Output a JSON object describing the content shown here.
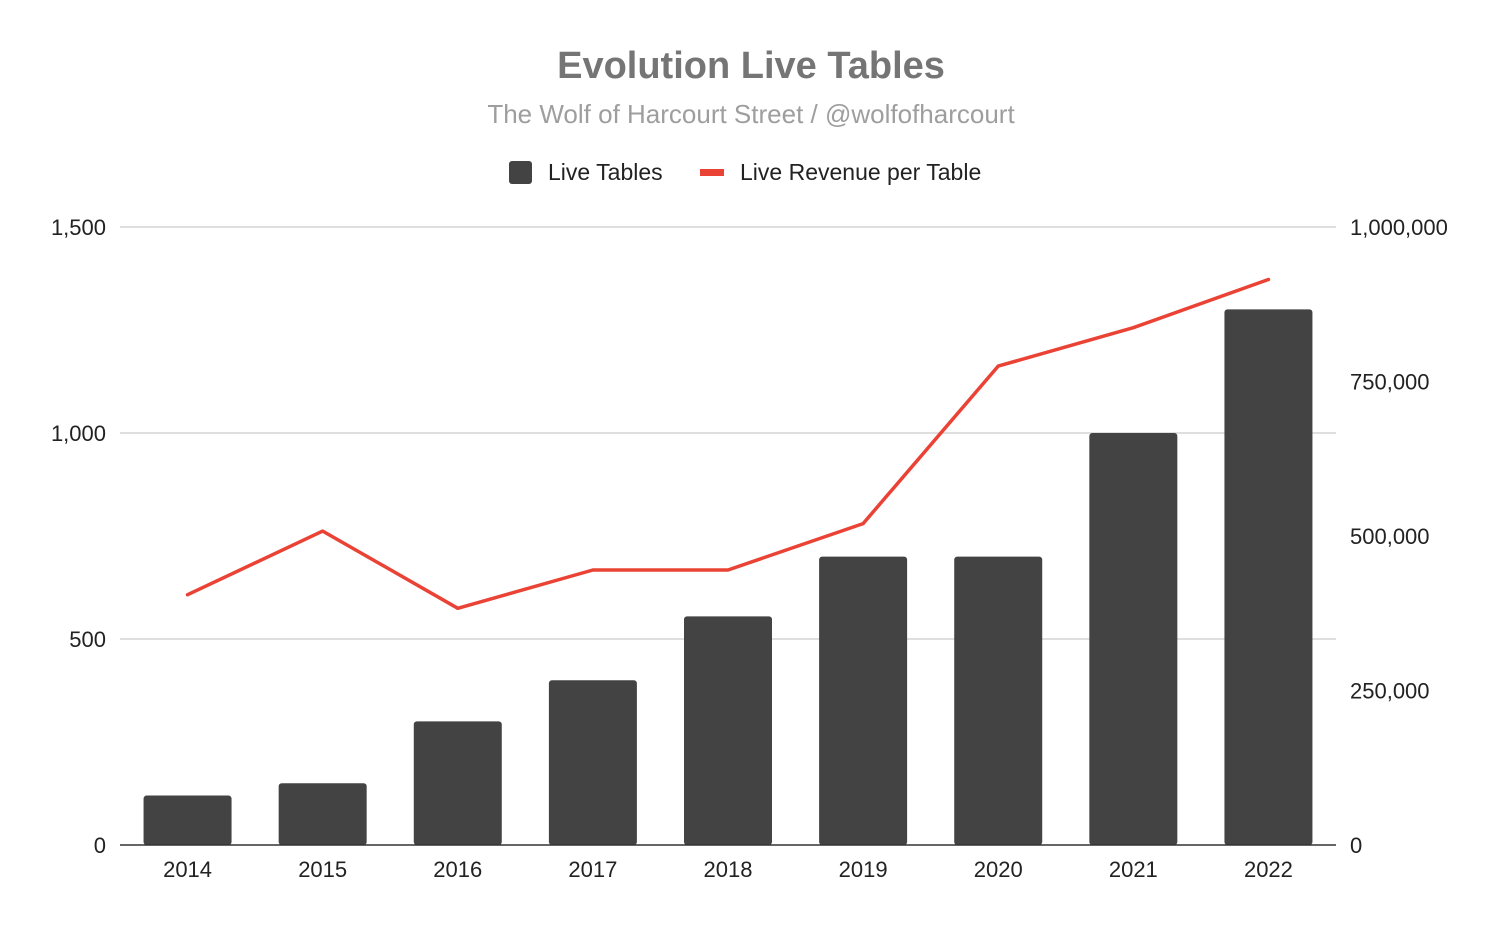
{
  "chart_data": {
    "type": "bar",
    "title": "Evolution Live Tables",
    "subtitle": "The Wolf of Harcourt Street / @wolfofharcourt",
    "categories": [
      "2014",
      "2015",
      "2016",
      "2017",
      "2018",
      "2019",
      "2020",
      "2021",
      "2022"
    ],
    "series": [
      {
        "name": "Live Tables",
        "type": "bar",
        "axis": "left",
        "color": "#434343",
        "values": [
          120,
          150,
          300,
          400,
          555,
          700,
          700,
          1000,
          1300
        ]
      },
      {
        "name": "Live Revenue per Table",
        "type": "line",
        "axis": "right",
        "color": "#ea4335",
        "values": [
          405000,
          508000,
          383000,
          445000,
          445000,
          520000,
          775000,
          837000,
          915000
        ]
      }
    ],
    "y_left": {
      "ylim": [
        0,
        1500
      ],
      "ticks": [
        0,
        500,
        1000,
        1500
      ],
      "tick_labels": [
        "0",
        "500",
        "1,000",
        "1,500"
      ]
    },
    "y_right": {
      "ylim": [
        0,
        1000000
      ],
      "ticks": [
        0,
        250000,
        500000,
        750000,
        1000000
      ],
      "tick_labels": [
        "0",
        "250,000",
        "500,000",
        "750,000",
        "1,000,000"
      ]
    },
    "grid": true,
    "legend": "top-center",
    "gridline_color": "#cccccc",
    "axis_color": "#333333"
  }
}
